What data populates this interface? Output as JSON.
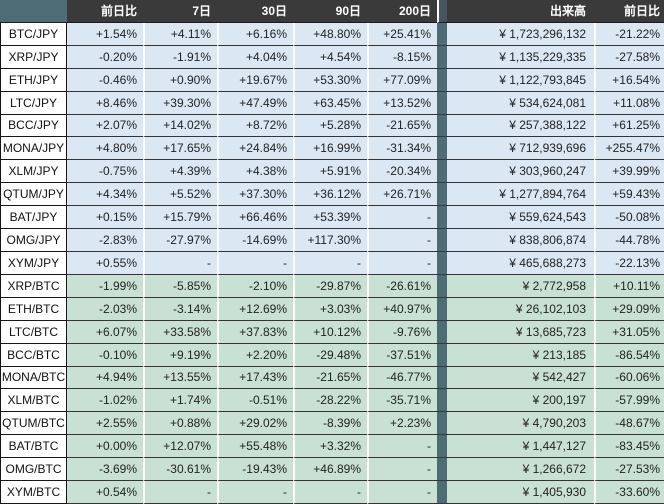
{
  "header": {
    "corner_label": "",
    "columns": [
      "前日比",
      "7日",
      "30日",
      "90日",
      "200日",
      "出来高",
      "前日比"
    ]
  },
  "sections": [
    {
      "id": "jpy",
      "rows": [
        {
          "pair": "BTC/JPY",
          "change_1d": "+1.54%",
          "change_7d": "+4.11%",
          "change_30d": "+6.16%",
          "change_90d": "+48.80%",
          "change_200d": "+25.41%",
          "volume": "¥ 1,723,296,132",
          "volume_change_1d": "-21.22%"
        },
        {
          "pair": "XRP/JPY",
          "change_1d": "-0.20%",
          "change_7d": "-1.91%",
          "change_30d": "+4.04%",
          "change_90d": "+4.54%",
          "change_200d": "-8.15%",
          "volume": "¥ 1,135,229,335",
          "volume_change_1d": "-27.58%"
        },
        {
          "pair": "ETH/JPY",
          "change_1d": "-0.46%",
          "change_7d": "+0.90%",
          "change_30d": "+19.67%",
          "change_90d": "+53.30%",
          "change_200d": "+77.09%",
          "volume": "¥ 1,122,793,845",
          "volume_change_1d": "+16.54%"
        },
        {
          "pair": "LTC/JPY",
          "change_1d": "+8.46%",
          "change_7d": "+39.30%",
          "change_30d": "+47.49%",
          "change_90d": "+63.45%",
          "change_200d": "+13.52%",
          "volume": "¥ 534,624,081",
          "volume_change_1d": "+11.08%"
        },
        {
          "pair": "BCC/JPY",
          "change_1d": "+2.07%",
          "change_7d": "+14.02%",
          "change_30d": "+8.72%",
          "change_90d": "+5.28%",
          "change_200d": "-21.65%",
          "volume": "¥ 257,388,122",
          "volume_change_1d": "+61.25%"
        },
        {
          "pair": "MONA/JPY",
          "change_1d": "+4.80%",
          "change_7d": "+17.65%",
          "change_30d": "+24.84%",
          "change_90d": "+16.99%",
          "change_200d": "-31.34%",
          "volume": "¥ 712,939,696",
          "volume_change_1d": "+255.47%"
        },
        {
          "pair": "XLM/JPY",
          "change_1d": "-0.75%",
          "change_7d": "+4.39%",
          "change_30d": "+4.38%",
          "change_90d": "+5.91%",
          "change_200d": "-20.34%",
          "volume": "¥ 303,960,247",
          "volume_change_1d": "+39.99%"
        },
        {
          "pair": "QTUM/JPY",
          "change_1d": "+4.34%",
          "change_7d": "+5.52%",
          "change_30d": "+37.30%",
          "change_90d": "+36.12%",
          "change_200d": "+26.71%",
          "volume": "¥ 1,277,894,764",
          "volume_change_1d": "+59.43%"
        },
        {
          "pair": "BAT/JPY",
          "change_1d": "+0.15%",
          "change_7d": "+15.79%",
          "change_30d": "+66.46%",
          "change_90d": "+53.39%",
          "change_200d": "-",
          "volume": "¥ 559,624,543",
          "volume_change_1d": "-50.08%"
        },
        {
          "pair": "OMG/JPY",
          "change_1d": "-2.83%",
          "change_7d": "-27.97%",
          "change_30d": "-14.69%",
          "change_90d": "+117.30%",
          "change_200d": "-",
          "volume": "¥ 838,806,874",
          "volume_change_1d": "-44.78%"
        },
        {
          "pair": "XYM/JPY",
          "change_1d": "+0.55%",
          "change_7d": "-",
          "change_30d": "-",
          "change_90d": "-",
          "change_200d": "-",
          "volume": "¥ 465,688,273",
          "volume_change_1d": "-22.13%"
        }
      ]
    },
    {
      "id": "btc",
      "rows": [
        {
          "pair": "XRP/BTC",
          "change_1d": "-1.99%",
          "change_7d": "-5.85%",
          "change_30d": "-2.10%",
          "change_90d": "-29.87%",
          "change_200d": "-26.61%",
          "volume": "¥ 2,772,958",
          "volume_change_1d": "+10.11%"
        },
        {
          "pair": "ETH/BTC",
          "change_1d": "-2.03%",
          "change_7d": "-3.14%",
          "change_30d": "+12.69%",
          "change_90d": "+3.03%",
          "change_200d": "+40.97%",
          "volume": "¥ 26,102,103",
          "volume_change_1d": "+29.09%"
        },
        {
          "pair": "LTC/BTC",
          "change_1d": "+6.07%",
          "change_7d": "+33.58%",
          "change_30d": "+37.83%",
          "change_90d": "+10.12%",
          "change_200d": "-9.76%",
          "volume": "¥ 13,685,723",
          "volume_change_1d": "+31.05%"
        },
        {
          "pair": "BCC/BTC",
          "change_1d": "-0.10%",
          "change_7d": "+9.19%",
          "change_30d": "+2.20%",
          "change_90d": "-29.48%",
          "change_200d": "-37.51%",
          "volume": "¥ 213,185",
          "volume_change_1d": "-86.54%"
        },
        {
          "pair": "MONA/BTC",
          "change_1d": "+4.94%",
          "change_7d": "+13.55%",
          "change_30d": "+17.43%",
          "change_90d": "-21.65%",
          "change_200d": "-46.77%",
          "volume": "¥ 542,427",
          "volume_change_1d": "-60.06%"
        },
        {
          "pair": "XLM/BTC",
          "change_1d": "-1.02%",
          "change_7d": "+1.74%",
          "change_30d": "-0.51%",
          "change_90d": "-28.22%",
          "change_200d": "-35.71%",
          "volume": "¥ 200,197",
          "volume_change_1d": "-57.99%"
        },
        {
          "pair": "QTUM/BTC",
          "change_1d": "+2.55%",
          "change_7d": "+0.88%",
          "change_30d": "+29.02%",
          "change_90d": "-8.39%",
          "change_200d": "+2.23%",
          "volume": "¥ 4,790,203",
          "volume_change_1d": "-48.67%"
        },
        {
          "pair": "BAT/BTC",
          "change_1d": "+0.00%",
          "change_7d": "+12.07%",
          "change_30d": "+55.48%",
          "change_90d": "+3.32%",
          "change_200d": "-",
          "volume": "¥ 1,447,127",
          "volume_change_1d": "-83.45%"
        },
        {
          "pair": "OMG/BTC",
          "change_1d": "-3.69%",
          "change_7d": "-30.61%",
          "change_30d": "-19.43%",
          "change_90d": "+46.89%",
          "change_200d": "-",
          "volume": "¥ 1,266,672",
          "volume_change_1d": "-27.53%"
        },
        {
          "pair": "XYM/BTC",
          "change_1d": "+0.54%",
          "change_7d": "-",
          "change_30d": "-",
          "change_90d": "-",
          "change_200d": "-",
          "volume": "¥ 1,405,930",
          "volume_change_1d": "-33.60%"
        }
      ]
    }
  ],
  "colors": {
    "header_bg": "#3a3a3a",
    "corner_bg": "#4d6c76",
    "divider_bg": "#4d6c76",
    "jpy_row_bg": "#dbe7f2",
    "btc_row_bg": "#c8e1d3",
    "header_text": "#ffffff",
    "body_text": "#222222"
  }
}
